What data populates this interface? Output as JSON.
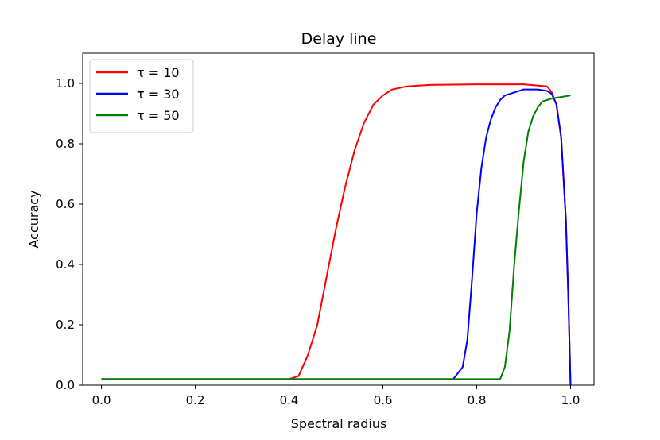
{
  "chart_data": {
    "type": "line",
    "title": "Delay line",
    "xlabel": "Spectral radius",
    "ylabel": "Accuracy",
    "xlim": [
      -0.04,
      1.05
    ],
    "ylim": [
      0.0,
      1.1
    ],
    "xticks": [
      "0.0",
      "0.2",
      "0.4",
      "0.6",
      "0.8",
      "1.0"
    ],
    "yticks": [
      "0.0",
      "0.2",
      "0.4",
      "0.6",
      "0.8",
      "1.0"
    ],
    "grid": false,
    "legend": "top-left",
    "series": [
      {
        "name": "τ = 10",
        "color": "#ff0000",
        "x": [
          0.0,
          0.1,
          0.2,
          0.3,
          0.4,
          0.42,
          0.44,
          0.46,
          0.48,
          0.5,
          0.52,
          0.54,
          0.56,
          0.58,
          0.6,
          0.62,
          0.65,
          0.7,
          0.8,
          0.9,
          0.95,
          0.96,
          0.97,
          0.98,
          0.99,
          0.995,
          1.0
        ],
        "values": [
          0.02,
          0.02,
          0.02,
          0.02,
          0.02,
          0.03,
          0.1,
          0.2,
          0.36,
          0.52,
          0.66,
          0.78,
          0.87,
          0.93,
          0.96,
          0.98,
          0.99,
          0.995,
          0.997,
          0.997,
          0.99,
          0.97,
          0.93,
          0.82,
          0.55,
          0.3,
          0.0
        ]
      },
      {
        "name": "τ = 30",
        "color": "#0000ff",
        "x": [
          0.0,
          0.2,
          0.4,
          0.6,
          0.75,
          0.77,
          0.78,
          0.79,
          0.8,
          0.81,
          0.82,
          0.83,
          0.84,
          0.85,
          0.86,
          0.88,
          0.9,
          0.93,
          0.95,
          0.96,
          0.97,
          0.98,
          0.99,
          0.995,
          1.0
        ],
        "values": [
          0.02,
          0.02,
          0.02,
          0.02,
          0.02,
          0.06,
          0.15,
          0.35,
          0.57,
          0.72,
          0.82,
          0.88,
          0.92,
          0.945,
          0.96,
          0.97,
          0.98,
          0.98,
          0.975,
          0.965,
          0.93,
          0.82,
          0.55,
          0.3,
          0.0
        ]
      },
      {
        "name": "τ = 50",
        "color": "#008000",
        "x": [
          0.0,
          0.2,
          0.4,
          0.6,
          0.75,
          0.85,
          0.86,
          0.87,
          0.88,
          0.89,
          0.9,
          0.91,
          0.92,
          0.93,
          0.94,
          0.96,
          0.98,
          1.0
        ],
        "values": [
          0.02,
          0.02,
          0.02,
          0.02,
          0.02,
          0.02,
          0.06,
          0.18,
          0.4,
          0.58,
          0.74,
          0.84,
          0.89,
          0.92,
          0.94,
          0.95,
          0.955,
          0.96
        ]
      }
    ]
  }
}
